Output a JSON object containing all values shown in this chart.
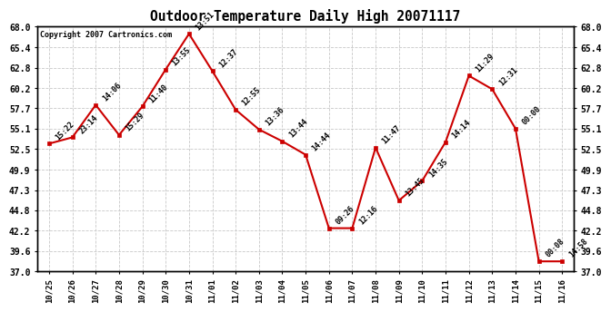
{
  "title": "Outdoor Temperature Daily High 20071117",
  "copyright": "Copyright 2007 Cartronics.com",
  "x_labels": [
    "10/25",
    "10/26",
    "10/27",
    "10/28",
    "10/29",
    "10/30",
    "10/31",
    "11/01",
    "11/02",
    "11/03",
    "11/04",
    "11/05",
    "11/06",
    "11/07",
    "11/08",
    "11/09",
    "11/10",
    "11/11",
    "11/12",
    "11/13",
    "11/14",
    "11/15",
    "11/16"
  ],
  "y_values": [
    53.2,
    54.0,
    58.1,
    54.3,
    57.9,
    62.6,
    67.1,
    62.4,
    57.5,
    55.0,
    53.5,
    51.8,
    42.5,
    42.5,
    52.7,
    46.0,
    48.5,
    53.4,
    61.8,
    60.1,
    55.1,
    38.3,
    38.3
  ],
  "point_labels": [
    "15:22",
    "23:14",
    "14:06",
    "15:29",
    "11:40",
    "13:55",
    "13:51",
    "12:37",
    "12:55",
    "13:36",
    "13:44",
    "14:44",
    "09:26",
    "12:16",
    "11:47",
    "13:45",
    "14:35",
    "14:14",
    "11:29",
    "12:31",
    "00:00",
    "00:08",
    "14:58"
  ],
  "line_color": "#cc0000",
  "marker_color": "#cc0000",
  "background_color": "#ffffff",
  "grid_color": "#c8c8c8",
  "ylim": [
    37.0,
    68.0
  ],
  "yticks": [
    37.0,
    39.6,
    42.2,
    44.8,
    47.3,
    49.9,
    52.5,
    55.1,
    57.7,
    60.2,
    62.8,
    65.4,
    68.0
  ]
}
